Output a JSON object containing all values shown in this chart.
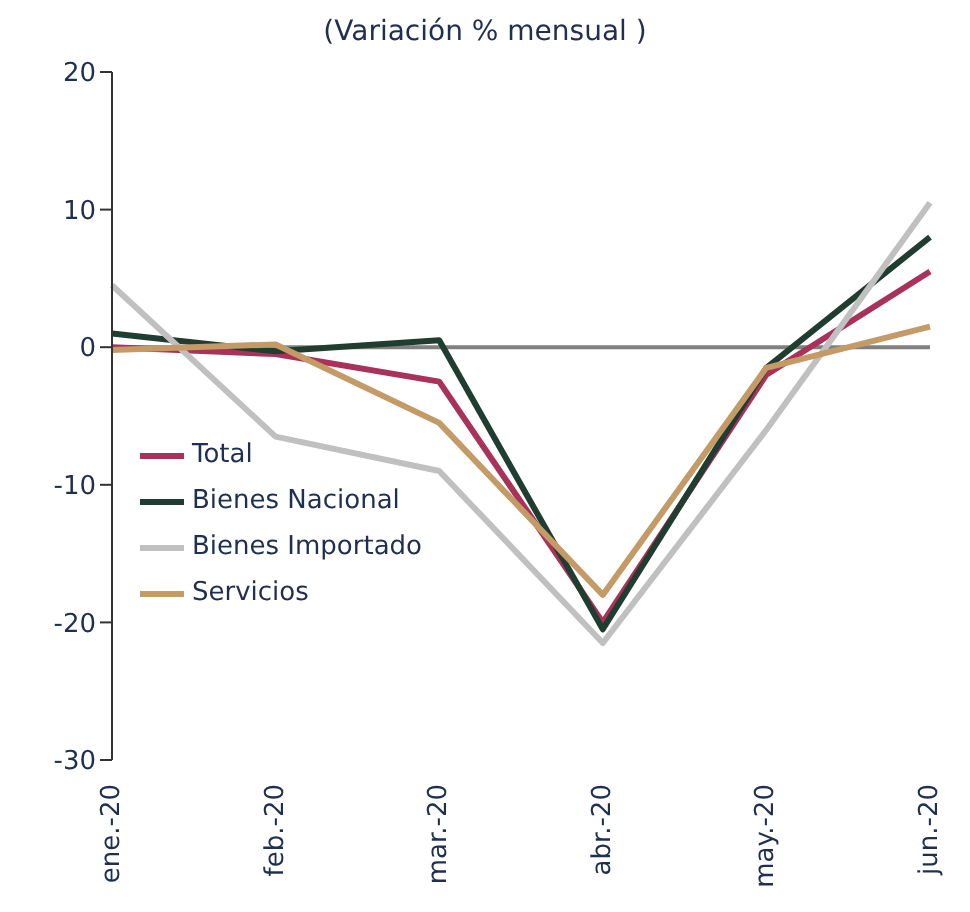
{
  "chart_data": {
    "type": "line",
    "title": "(Variación % mensual )",
    "categories": [
      "ene.-20",
      "feb.-20",
      "mar.-20",
      "abr.-20",
      "may.-20",
      "jun.-20"
    ],
    "series": [
      {
        "name": "Total",
        "color": "#a8325a",
        "values": [
          0,
          -0.5,
          -2.5,
          -20,
          -2,
          5.5
        ]
      },
      {
        "name": "Bienes Nacional",
        "color": "#1f3d30",
        "values": [
          1,
          -0.3,
          0.5,
          -20.5,
          -1.5,
          8
        ]
      },
      {
        "name": "Bienes Importado",
        "color": "#c0c0c0",
        "values": [
          4.5,
          -6.5,
          -9,
          -21.5,
          -6,
          10.5
        ]
      },
      {
        "name": "Servicios",
        "color": "#c49a66",
        "values": [
          -0.2,
          0.2,
          -5.5,
          -18,
          -1.5,
          1.5
        ]
      }
    ],
    "ylim": [
      -30,
      20
    ],
    "yticks": [
      -30,
      -20,
      -10,
      0,
      10,
      20
    ],
    "ref_lines": [
      {
        "axis": "y",
        "value": 0,
        "color": "#808080"
      }
    ],
    "grid": false,
    "legend": "bottom left",
    "marker": "none",
    "line_style": "solid"
  }
}
